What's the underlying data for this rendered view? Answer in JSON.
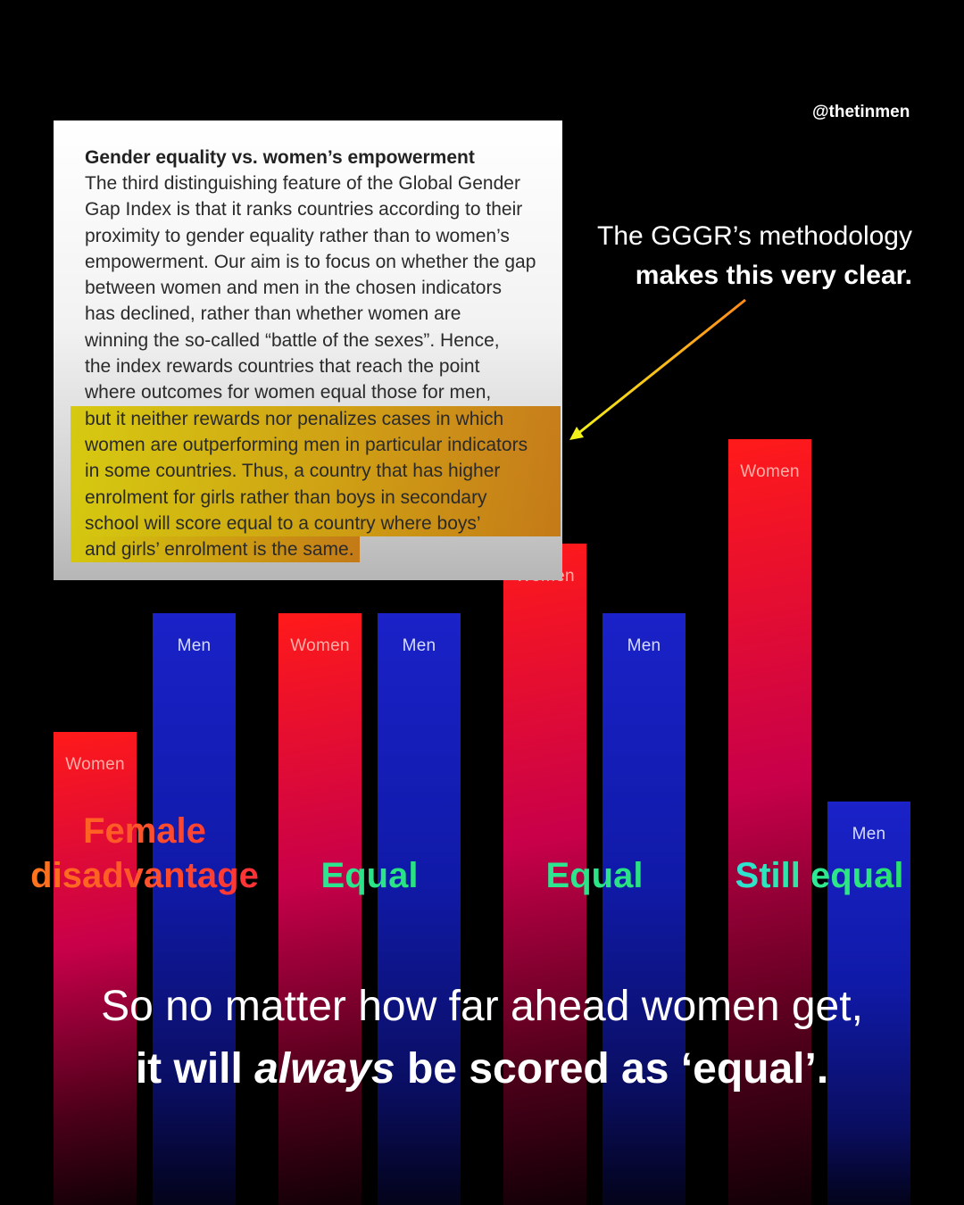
{
  "handle": "@thetinmen",
  "excerpt": {
    "title": "Gender equality vs. women’s empowerment",
    "lines": [
      "The third distinguishing feature of the Global Gender",
      "Gap Index is that it ranks countries according to their",
      "proximity to gender equality rather than to women’s",
      "empowerment. Our aim is to focus on whether the gap",
      "between women and men in the chosen indicators",
      "has declined, rather than whether women are",
      "winning the so-called “battle of the sexes”. Hence,",
      "the index rewards countries that reach the point",
      "where outcomes for women equal those for men,"
    ],
    "highlighted_lines": [
      "but it neither rewards nor penalizes cases in which",
      "women are outperforming men in particular indicators",
      "in some countries. Thus, a country that has higher",
      "enrolment for girls rather than boys in secondary",
      "school will score equal to a country where boys’",
      "and girls’ enrolment is the same."
    ]
  },
  "callout": {
    "line1": "The GGGR’s methodology",
    "line2": "makes this very clear."
  },
  "chart_data": {
    "type": "bar",
    "categories": [
      "Female disadvantage",
      "Equal",
      "Equal",
      "Still equal"
    ],
    "series": [
      {
        "name": "Women",
        "values": [
          68,
          85,
          95,
          110
        ]
      },
      {
        "name": "Men",
        "values": [
          85,
          85,
          85,
          58
        ]
      }
    ],
    "bar_labels": {
      "women": "Women",
      "men": "Men"
    },
    "category_labels": [
      {
        "line1": "Female",
        "line2": "disadvantage"
      },
      {
        "line1": "",
        "line2": "Equal"
      },
      {
        "line1": "",
        "line2": "Equal"
      },
      {
        "line1": "",
        "line2": "Still equal"
      }
    ],
    "ylim": [
      0,
      120
    ],
    "grid": false,
    "colors": {
      "women": "#ff1a1a",
      "men": "#1a22c8"
    }
  },
  "conclusion": {
    "line1": "So no matter how far ahead women get,",
    "line2_before": "it will ",
    "line2_emphasis": "always",
    "line2_after": " be scored as ‘equal’."
  }
}
